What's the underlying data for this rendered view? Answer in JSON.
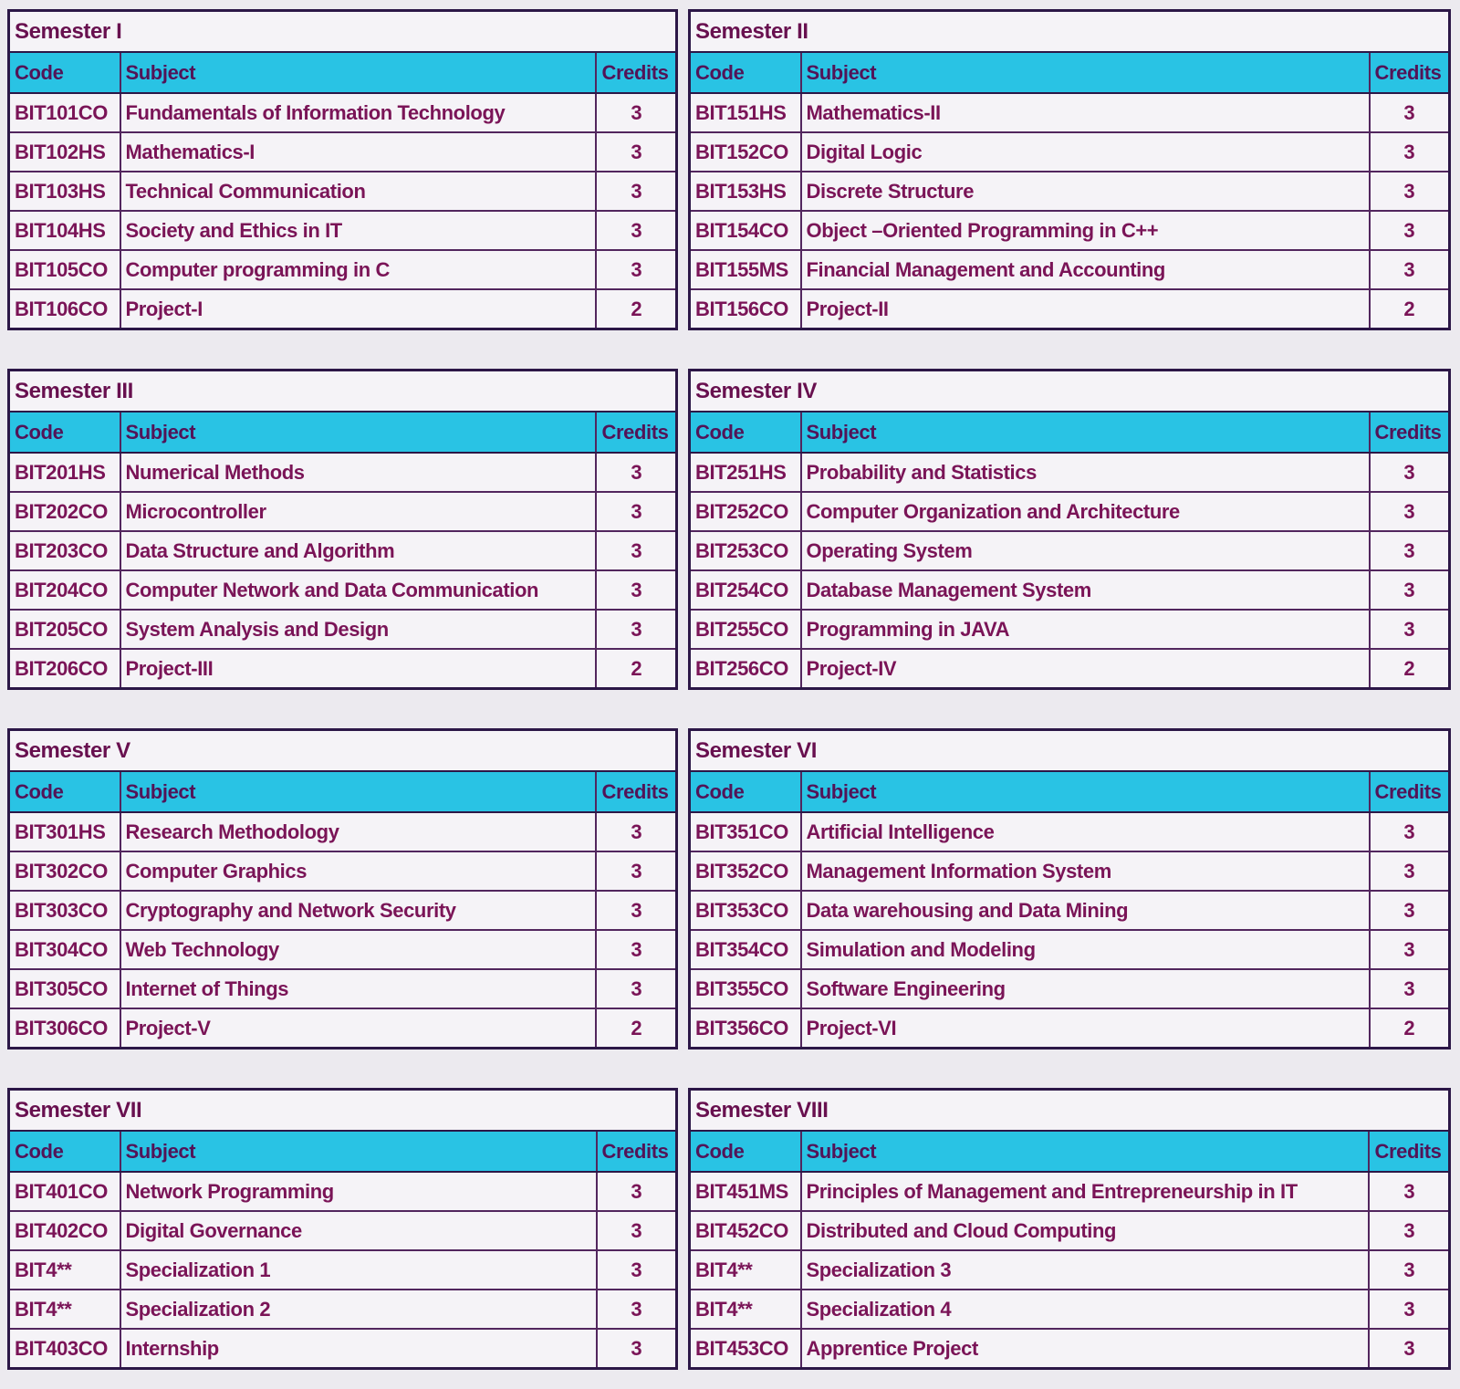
{
  "colors": {
    "page_bg": "#ECEAEF",
    "table_bg": "#F5F3F7",
    "header_bg": "#29C3E4",
    "text": "#7A1457",
    "title_text": "#68104F",
    "header_text": "#521457",
    "border_outer": "#2C1747",
    "border_inner": "#52265E"
  },
  "columns": [
    "Code",
    "Subject",
    "Credits"
  ],
  "semesters": [
    {
      "title": "Semester I",
      "rows": [
        [
          "BIT101CO",
          "Fundamentals of Information Technology",
          "3"
        ],
        [
          "BIT102HS",
          "Mathematics-I",
          "3"
        ],
        [
          "BIT103HS",
          "Technical Communication",
          "3"
        ],
        [
          "BIT104HS",
          "Society and Ethics in IT",
          "3"
        ],
        [
          "BIT105CO",
          "Computer programming in C",
          "3"
        ],
        [
          "BIT106CO",
          "Project-I",
          "2"
        ]
      ]
    },
    {
      "title": "Semester II",
      "rows": [
        [
          "BIT151HS",
          "Mathematics-II",
          "3"
        ],
        [
          "BIT152CO",
          "Digital Logic",
          "3"
        ],
        [
          "BIT153HS",
          "Discrete Structure",
          "3"
        ],
        [
          "BIT154CO",
          "Object –Oriented Programming in C++",
          "3"
        ],
        [
          "BIT155MS",
          "Financial Management and Accounting",
          "3"
        ],
        [
          "BIT156CO",
          "Project-II",
          "2"
        ]
      ]
    },
    {
      "title": "Semester III",
      "rows": [
        [
          "BIT201HS",
          "Numerical Methods",
          "3"
        ],
        [
          "BIT202CO",
          "Microcontroller",
          "3"
        ],
        [
          "BIT203CO",
          "Data Structure and Algorithm",
          "3"
        ],
        [
          "BIT204CO",
          "Computer Network and Data Communication",
          "3"
        ],
        [
          "BIT205CO",
          "System Analysis and Design",
          "3"
        ],
        [
          "BIT206CO",
          "Project-III",
          "2"
        ]
      ]
    },
    {
      "title": "Semester IV",
      "rows": [
        [
          "BIT251HS",
          "Probability and Statistics",
          "3"
        ],
        [
          "BIT252CO",
          "Computer Organization and Architecture",
          "3"
        ],
        [
          "BIT253CO",
          "Operating System",
          "3"
        ],
        [
          "BIT254CO",
          "Database Management System",
          "3"
        ],
        [
          "BIT255CO",
          "Programming in JAVA",
          "3"
        ],
        [
          "BIT256CO",
          "Project-IV",
          "2"
        ]
      ]
    },
    {
      "title": "Semester V",
      "rows": [
        [
          "BIT301HS",
          "Research Methodology",
          "3"
        ],
        [
          "BIT302CO",
          "Computer Graphics",
          "3"
        ],
        [
          "BIT303CO",
          "Cryptography and Network Security",
          "3"
        ],
        [
          "BIT304CO",
          "Web Technology",
          "3"
        ],
        [
          "BIT305CO",
          "Internet of Things",
          "3"
        ],
        [
          "BIT306CO",
          "Project-V",
          "2"
        ]
      ]
    },
    {
      "title": "Semester VI",
      "rows": [
        [
          "BIT351CO",
          "Artificial Intelligence",
          "3"
        ],
        [
          "BIT352CO",
          "Management Information System",
          "3"
        ],
        [
          "BIT353CO",
          "Data warehousing and Data Mining",
          "3"
        ],
        [
          "BIT354CO",
          "Simulation and Modeling",
          "3"
        ],
        [
          "BIT355CO",
          "Software Engineering",
          "3"
        ],
        [
          "BIT356CO",
          "Project-VI",
          "2"
        ]
      ]
    },
    {
      "title": "Semester VII",
      "rows": [
        [
          "BIT401CO",
          "Network Programming",
          "3"
        ],
        [
          "BIT402CO",
          "Digital Governance",
          "3"
        ],
        [
          "BIT4**",
          "Specialization 1",
          "3"
        ],
        [
          "BIT4**",
          "Specialization 2",
          "3"
        ],
        [
          "BIT403CO",
          "Internship",
          "3"
        ]
      ]
    },
    {
      "title": "Semester VIII",
      "rows": [
        [
          "BIT451MS",
          "Principles of Management and Entrepreneurship in IT",
          "3"
        ],
        [
          "BIT452CO",
          "Distributed and Cloud Computing",
          "3"
        ],
        [
          "BIT4**",
          "Specialization 3",
          "3"
        ],
        [
          "BIT4**",
          "Specialization 4",
          "3"
        ],
        [
          "BIT453CO",
          "Apprentice Project",
          "3"
        ]
      ]
    }
  ]
}
